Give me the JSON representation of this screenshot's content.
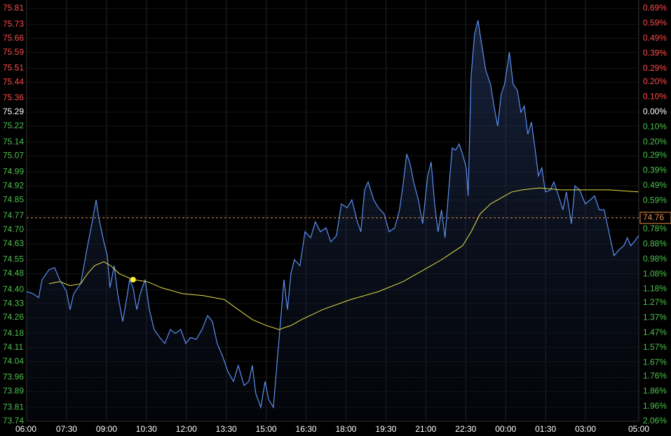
{
  "chart_data": {
    "type": "line",
    "xlim": [
      0,
      23
    ],
    "xticks": [
      {
        "value": 0,
        "label": "06:00"
      },
      {
        "value": 1.5,
        "label": "07:30"
      },
      {
        "value": 3,
        "label": "09:00"
      },
      {
        "value": 4.5,
        "label": "10:30"
      },
      {
        "value": 6,
        "label": "12:00"
      },
      {
        "value": 7.5,
        "label": "13:30"
      },
      {
        "value": 9,
        "label": "15:00"
      },
      {
        "value": 10.5,
        "label": "16:30"
      },
      {
        "value": 12,
        "label": "18:00"
      },
      {
        "value": 13.5,
        "label": "19:30"
      },
      {
        "value": 15,
        "label": "21:00"
      },
      {
        "value": 16.5,
        "label": "22:30"
      },
      {
        "value": 18,
        "label": "00:00"
      },
      {
        "value": 19.5,
        "label": "01:30"
      },
      {
        "value": 21,
        "label": "03:00"
      },
      {
        "value": 23,
        "label": "05:00"
      }
    ],
    "ylim": [
      73.74,
      75.81
    ],
    "yticks": [
      75.81,
      75.73,
      75.66,
      75.59,
      75.51,
      75.44,
      75.36,
      75.29,
      75.22,
      75.14,
      75.07,
      74.99,
      74.92,
      74.85,
      74.77,
      {
        "value": 74.7,
        "label": "74.70"
      },
      74.63,
      74.55,
      74.48,
      {
        "value": 74.4,
        "label": "74.40"
      },
      74.33,
      74.26,
      74.18,
      74.11,
      74.04,
      73.96,
      73.89,
      73.81,
      73.74
    ],
    "y2lim": [
      -2.06,
      0.69
    ],
    "y2ticks": [
      {
        "value": 0.69,
        "label": "0.69%"
      },
      {
        "value": 0.59,
        "label": "0.59%"
      },
      {
        "value": 0.49,
        "label": "0.49%"
      },
      {
        "value": 0.39,
        "label": "0.39%"
      },
      {
        "value": 0.29,
        "label": "0.29%"
      },
      {
        "value": 0.2,
        "label": "0.20%"
      },
      {
        "value": 0.1,
        "label": "0.10%"
      },
      {
        "value": 0,
        "label": "0.00%"
      },
      {
        "value": -0.1,
        "label": "0.10%"
      },
      {
        "value": -0.2,
        "label": "0.20%"
      },
      {
        "value": -0.29,
        "label": "0.29%"
      },
      {
        "value": -0.39,
        "label": "0.39%"
      },
      {
        "value": -0.49,
        "label": "0.49%"
      },
      {
        "value": -0.59,
        "label": "0.59%"
      },
      {
        "value": -0.69,
        "label": "0.69%"
      },
      {
        "value": -0.78,
        "label": "0.78%"
      },
      {
        "value": -0.88,
        "label": "0.88%"
      },
      {
        "value": -0.98,
        "label": "0.98%"
      },
      {
        "value": -1.08,
        "label": "1.08%"
      },
      {
        "value": -1.18,
        "label": "1.18%"
      },
      {
        "value": -1.27,
        "label": "1.27%"
      },
      {
        "value": -1.37,
        "label": "1.37%"
      },
      {
        "value": -1.47,
        "label": "1.47%"
      },
      {
        "value": -1.57,
        "label": "1.57%"
      },
      {
        "value": -1.67,
        "label": "1.67%"
      },
      {
        "value": -1.76,
        "label": "1.76%"
      },
      {
        "value": -1.86,
        "label": "1.86%"
      },
      {
        "value": -1.96,
        "label": "1.96%"
      },
      {
        "value": -2.06,
        "label": "2.06%"
      }
    ],
    "up_color": "#ff4a4a",
    "down_color": "#4cc24c",
    "flat_color": "#ffffff",
    "grid": true,
    "current_price": 74.76,
    "current_color": "#e08a4a",
    "series": [
      {
        "color": "#5b8ff0",
        "area": true,
        "x": [
          0,
          0.24,
          0.45,
          0.58,
          0.84,
          1.05,
          1.24,
          1.5,
          1.63,
          1.77,
          2.03,
          2.29,
          2.45,
          2.61,
          2.71,
          2.9,
          3.03,
          3.13,
          3.29,
          3.42,
          3.61,
          3.74,
          3.87,
          4,
          4.14,
          4.27,
          4.45,
          4.61,
          4.79,
          5,
          5.19,
          5.4,
          5.58,
          5.79,
          5.98,
          6.16,
          6.37,
          6.59,
          6.8,
          6.98,
          7.16,
          7.38,
          7.56,
          7.77,
          7.95,
          8.17,
          8.35,
          8.48,
          8.61,
          8.8,
          8.96,
          9.09,
          9.27,
          9.4,
          9.54,
          9.67,
          9.8,
          9.93,
          10.06,
          10.27,
          10.46,
          10.67,
          10.85,
          11.04,
          11.25,
          11.43,
          11.64,
          11.83,
          12.04,
          12.22,
          12.43,
          12.56,
          12.7,
          12.83,
          13.04,
          13.22,
          13.43,
          13.62,
          13.83,
          14.01,
          14.14,
          14.28,
          14.41,
          14.54,
          14.72,
          14.88,
          15.07,
          15.2,
          15.33,
          15.46,
          15.59,
          15.72,
          15.86,
          15.99,
          16.12,
          16.25,
          16.38,
          16.52,
          16.59,
          16.7,
          16.83,
          16.96,
          17.12,
          17.25,
          17.43,
          17.56,
          17.7,
          17.83,
          17.96,
          18.14,
          18.28,
          18.44,
          18.57,
          18.7,
          18.83,
          18.97,
          19.1,
          19.23,
          19.36,
          19.49,
          19.68,
          19.81,
          19.99,
          20.15,
          20.28,
          20.47,
          20.6,
          20.78,
          20.99,
          21.18,
          21.34,
          21.52,
          21.7,
          21.91,
          22.07,
          22.26,
          22.44,
          22.57,
          22.7,
          22.83,
          22.99
        ],
        "values": [
          74.39,
          74.38,
          74.36,
          74.45,
          74.5,
          74.51,
          74.45,
          74.39,
          74.3,
          74.38,
          74.43,
          74.62,
          74.73,
          74.85,
          74.76,
          74.64,
          74.57,
          74.41,
          74.52,
          74.38,
          74.24,
          74.34,
          74.45,
          74.41,
          74.3,
          74.38,
          74.45,
          74.3,
          74.2,
          74.16,
          74.13,
          74.2,
          74.18,
          74.2,
          74.13,
          74.16,
          74.15,
          74.2,
          74.27,
          74.24,
          74.13,
          74.06,
          73.99,
          73.94,
          74.02,
          73.92,
          73.94,
          74.02,
          73.88,
          73.81,
          73.94,
          73.85,
          73.81,
          74.02,
          74.24,
          74.45,
          74.3,
          74.48,
          74.55,
          74.52,
          74.69,
          74.66,
          74.74,
          74.69,
          74.71,
          74.64,
          74.67,
          74.83,
          74.81,
          74.85,
          74.74,
          74.69,
          74.9,
          74.94,
          74.85,
          74.81,
          74.78,
          74.69,
          74.71,
          74.8,
          74.92,
          75.08,
          75.03,
          74.94,
          74.85,
          74.73,
          74.97,
          75.04,
          74.83,
          74.69,
          74.8,
          74.66,
          74.9,
          75.11,
          75.1,
          75.13,
          75.08,
          75.01,
          74.87,
          75.47,
          75.68,
          75.75,
          75.61,
          75.5,
          75.43,
          75.32,
          75.22,
          75.38,
          75.43,
          75.59,
          75.43,
          75.4,
          75.29,
          75.32,
          75.18,
          75.24,
          75.11,
          74.97,
          75.01,
          74.89,
          74.9,
          74.94,
          74.87,
          74.8,
          74.89,
          74.73,
          74.92,
          74.9,
          74.83,
          74.85,
          74.87,
          74.8,
          74.8,
          74.67,
          74.57,
          74.6,
          74.62,
          74.66,
          74.62,
          74.64,
          74.67
        ]
      },
      {
        "color": "#e6e04a",
        "area": false,
        "x": [
          0.84,
          1.24,
          1.63,
          2.03,
          2.29,
          2.55,
          2.9,
          3.16,
          3.48,
          4,
          4.53,
          5.06,
          5.85,
          6.64,
          7.43,
          7.95,
          8.48,
          9.01,
          9.48,
          9.93,
          10.33,
          11.12,
          12.17,
          13.22,
          14.14,
          14.8,
          15.59,
          16.38,
          16.7,
          17.04,
          17.43,
          17.83,
          18.23,
          18.62,
          19.28,
          20.07,
          20.86,
          21.91,
          22.99
        ],
        "values": [
          74.43,
          74.44,
          74.42,
          74.43,
          74.48,
          74.52,
          74.54,
          74.52,
          74.48,
          74.45,
          74.44,
          74.41,
          74.38,
          74.37,
          74.35,
          74.3,
          74.25,
          74.22,
          74.2,
          74.22,
          74.25,
          74.3,
          74.35,
          74.39,
          74.44,
          74.49,
          74.55,
          74.62,
          74.69,
          74.78,
          74.83,
          74.86,
          74.89,
          74.9,
          74.91,
          74.9,
          74.9,
          74.9,
          74.89
        ]
      }
    ],
    "highlight": {
      "x": 4,
      "value": 74.45,
      "color": "#ffee33"
    }
  }
}
